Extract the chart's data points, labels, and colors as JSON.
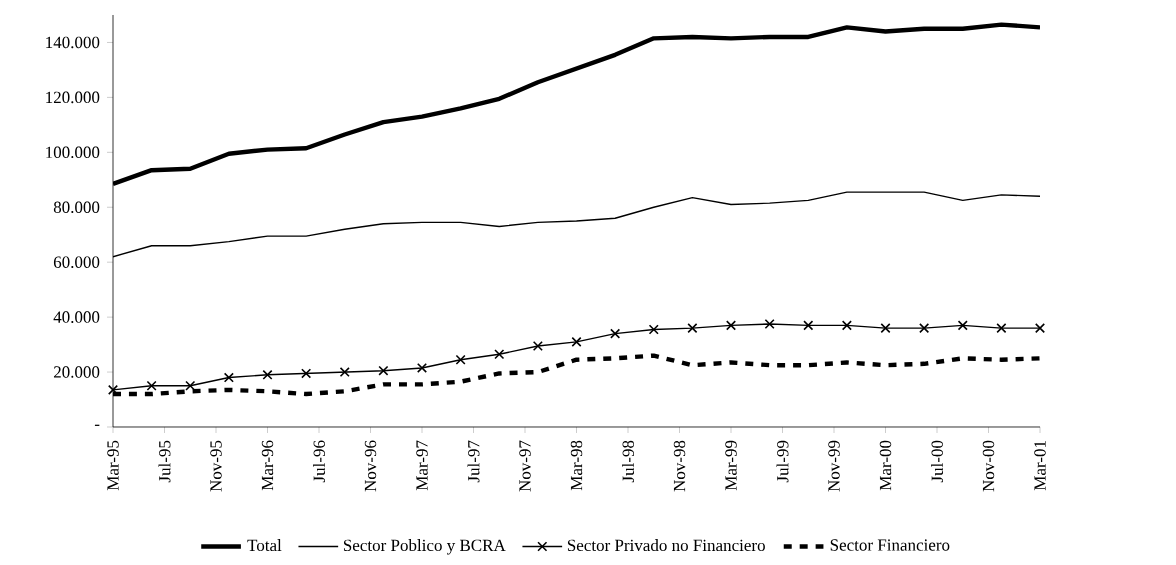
{
  "chart_data": {
    "type": "line",
    "x": [
      "1995-03",
      "1995-06",
      "1995-09",
      "1995-12",
      "1996-03",
      "1996-06",
      "1996-09",
      "1996-12",
      "1997-03",
      "1997-06",
      "1997-09",
      "1997-12",
      "1998-03",
      "1998-06",
      "1998-09",
      "1998-12",
      "1999-03",
      "1999-06",
      "1999-09",
      "1999-12",
      "2000-03",
      "2000-06",
      "2000-09",
      "2000-12",
      "2001-03"
    ],
    "series": [
      {
        "name": "Total",
        "color": "#000000",
        "line_style": "solid",
        "values": [
          88500,
          93500,
          94000,
          99500,
          101000,
          101500,
          106500,
          111000,
          113000,
          116000,
          119500,
          125500,
          130500,
          135500,
          141500,
          142000,
          141500,
          142000,
          142000,
          145500,
          144000,
          145000,
          145000,
          146500,
          145500
        ]
      },
      {
        "name": "Sector Poblico y BCRA",
        "color": "#000000",
        "line_style": "solid",
        "values": [
          62000,
          66000,
          66000,
          67500,
          69500,
          69500,
          72000,
          74000,
          74500,
          74500,
          73000,
          74500,
          75000,
          76000,
          80000,
          83500,
          81000,
          81500,
          82500,
          85500,
          85500,
          85500,
          82500,
          84500,
          84000
        ]
      },
      {
        "name": "Sector Privado no Financiero",
        "color": "#000000",
        "line_style": "solid",
        "marker": "cross",
        "values": [
          13500,
          15000,
          15000,
          18000,
          19000,
          19500,
          20000,
          20500,
          21500,
          24500,
          26500,
          29500,
          31000,
          34000,
          35500,
          36000,
          37000,
          37500,
          37000,
          37000,
          36000,
          36000,
          37000,
          36000,
          36000
        ]
      },
      {
        "name": "Sector Financiero",
        "color": "#000000",
        "line_style": "dashed",
        "values": [
          12000,
          12000,
          13000,
          13500,
          13000,
          12000,
          13000,
          15500,
          15500,
          16500,
          19500,
          20000,
          24500,
          25000,
          26000,
          22500,
          23500,
          22500,
          22500,
          23500,
          22500,
          23000,
          25000,
          24500,
          25000
        ]
      }
    ],
    "xlim": [
      "1995-03",
      "2001-03"
    ],
    "xticks": [
      {
        "value": "1995-03",
        "label": "Mar-95"
      },
      {
        "value": "1995-07",
        "label": "Jul-95"
      },
      {
        "value": "1995-11",
        "label": "Nov-95"
      },
      {
        "value": "1996-03",
        "label": "Mar-96"
      },
      {
        "value": "1996-07",
        "label": "Jul-96"
      },
      {
        "value": "1996-11",
        "label": "Nov-96"
      },
      {
        "value": "1997-03",
        "label": "Mar-97"
      },
      {
        "value": "1997-07",
        "label": "Jul-97"
      },
      {
        "value": "1997-11",
        "label": "Nov-97"
      },
      {
        "value": "1998-03",
        "label": "Mar-98"
      },
      {
        "value": "1998-07",
        "label": "Jul-98"
      },
      {
        "value": "1998-11",
        "label": "Nov-98"
      },
      {
        "value": "1999-03",
        "label": "Mar-99"
      },
      {
        "value": "1999-07",
        "label": "Jul-99"
      },
      {
        "value": "1999-11",
        "label": "Nov-99"
      },
      {
        "value": "2000-03",
        "label": "Mar-00"
      },
      {
        "value": "2000-07",
        "label": "Jul-00"
      },
      {
        "value": "2000-11",
        "label": "Nov-00"
      },
      {
        "value": "2001-03",
        "label": "Mar-01"
      }
    ],
    "ylim": [
      0,
      150000
    ],
    "yticks": [
      {
        "value": 0,
        "label": "-"
      },
      {
        "value": 20000,
        "label": "20.000"
      },
      {
        "value": 40000,
        "label": "40.000"
      },
      {
        "value": 60000,
        "label": "60.000"
      },
      {
        "value": 80000,
        "label": "80.000"
      },
      {
        "value": 100000,
        "label": "100.000"
      },
      {
        "value": 120000,
        "label": "120.000"
      },
      {
        "value": 140000,
        "label": "140.000"
      }
    ],
    "grid": false,
    "legend": "bottom"
  }
}
